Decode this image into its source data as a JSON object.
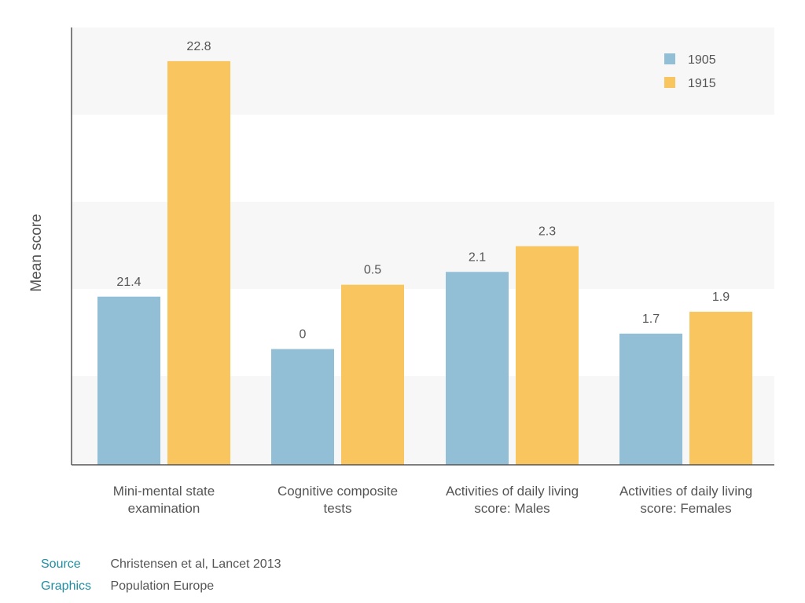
{
  "chart_data": {
    "type": "bar",
    "ylabel": "Mean score",
    "categories": [
      [
        "Mini-mental state",
        "examination"
      ],
      [
        "Cognitive composite",
        "tests"
      ],
      [
        "Activities of daily living",
        "score: Males"
      ],
      [
        "Activities of daily living",
        "score: Females"
      ]
    ],
    "series": [
      {
        "name": "1905",
        "color": "#93bfd6",
        "labels": [
          "21.4",
          "0",
          "2.1",
          "1.7"
        ],
        "values": [
          21.4,
          0,
          2.1,
          1.7
        ]
      },
      {
        "name": "1915",
        "color": "#f9c55f",
        "labels": [
          "22.8",
          "0.5",
          "2.3",
          "1.9"
        ],
        "values": [
          22.8,
          0.5,
          2.3,
          1.9
        ]
      }
    ],
    "legend_position": "top-right",
    "grid": "alternating horizontal bands",
    "note": "Bars are drawn on a per-category scale (values from different measures); labels show the exact values."
  },
  "footer": {
    "source_label": "Source",
    "source_text": "Christensen et al, Lancet 2013",
    "graphics_label": "Graphics",
    "graphics_text": "Population Europe"
  },
  "colors": {
    "accent_label": "#1f8ea3",
    "band": "#f7f7f7",
    "axis": "#555555",
    "text": "#555555"
  }
}
